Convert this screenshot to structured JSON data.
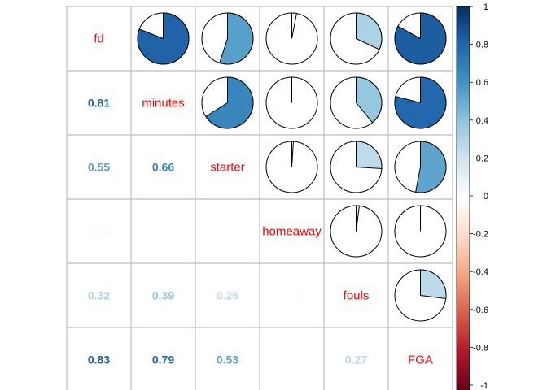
{
  "chart_data": {
    "type": "heatmap",
    "title": "",
    "method_upper": "pie",
    "method_lower": "number",
    "diagonal": "labels",
    "variables": [
      "fd",
      "minutes",
      "starter",
      "homeaway",
      "fouls",
      "FGA"
    ],
    "matrix": [
      [
        1.0,
        0.81,
        0.55,
        0.03,
        0.32,
        0.83
      ],
      [
        0.81,
        1.0,
        0.66,
        0.0,
        0.39,
        0.79
      ],
      [
        0.55,
        0.66,
        1.0,
        0.01,
        0.26,
        0.53
      ],
      [
        0.03,
        0.0,
        0.01,
        1.0,
        -0.02,
        0.0
      ],
      [
        0.32,
        0.39,
        0.26,
        -0.02,
        1.0,
        0.27
      ],
      [
        0.83,
        0.79,
        0.53,
        0.0,
        0.27,
        1.0
      ]
    ],
    "number_labels": [
      [
        "",
        "",
        "",
        "",
        "",
        ""
      ],
      [
        "0.81",
        "",
        "",
        "",
        "",
        ""
      ],
      [
        "0.55",
        "0.66",
        "",
        "",
        "",
        ""
      ],
      [
        "0.03",
        "",
        "",
        "",
        "",
        ""
      ],
      [
        "0.32",
        "0.39",
        "0.26",
        "-0.02",
        "",
        ""
      ],
      [
        "0.83",
        "0.79",
        "0.53",
        "",
        "0.27",
        ""
      ]
    ],
    "colorbar": {
      "range": [
        -1,
        1
      ],
      "ticks": [
        "1",
        "0.8",
        "0.6",
        "0.4",
        "0.2",
        "0",
        "-0.2",
        "-0.4",
        "-0.6",
        "-0.8",
        "-1"
      ],
      "colors": [
        "#053061",
        "#2166AC",
        "#4393C3",
        "#92C5DE",
        "#D1E5F0",
        "#FFFFFF",
        "#FDDBC7",
        "#F4A582",
        "#D6604D",
        "#B2182B",
        "#67001F"
      ]
    },
    "label_color": "#FF0000",
    "grid_color": "#BEBEBE"
  }
}
